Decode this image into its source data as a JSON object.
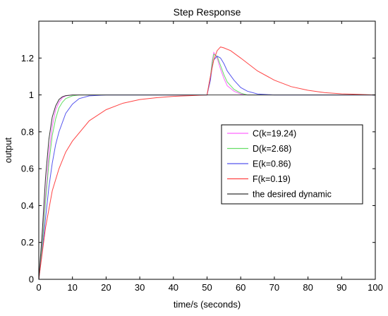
{
  "chart_data": {
    "type": "line",
    "title": "Step Response",
    "xlabel": "time/s (seconds)",
    "ylabel": "output",
    "xlim": [
      0,
      100
    ],
    "ylim": [
      0,
      1.4
    ],
    "xticks": [
      0,
      10,
      20,
      30,
      40,
      50,
      60,
      70,
      80,
      90,
      100
    ],
    "yticks": [
      0,
      0.2,
      0.4,
      0.6,
      0.8,
      1,
      1.2
    ],
    "ytick_labels": [
      "0",
      "0.2",
      "0.4",
      "0.6",
      "0.8",
      "1",
      "1.2"
    ],
    "grid": false,
    "legend_position": "center-right",
    "series": [
      {
        "name": "C(k=19.24)",
        "color": "#ff66ff",
        "x": [
          0,
          1,
          2,
          3,
          4,
          5,
          6,
          7,
          8,
          10,
          15,
          50,
          51,
          51.5,
          52,
          53,
          54,
          55,
          56,
          58,
          60,
          62,
          65,
          100
        ],
        "y": [
          0,
          0.2,
          0.45,
          0.68,
          0.83,
          0.92,
          0.96,
          0.985,
          0.995,
          1.0,
          1.0,
          1.0,
          1.1,
          1.18,
          1.23,
          1.2,
          1.14,
          1.09,
          1.05,
          1.02,
          1.005,
          1.0,
          1.0,
          1.0
        ]
      },
      {
        "name": "D(k=2.68)",
        "color": "#66dd66",
        "x": [
          0,
          1,
          2,
          3,
          4,
          5,
          6,
          7,
          8,
          10,
          12,
          15,
          50,
          51,
          51.5,
          52,
          53,
          54,
          55,
          56,
          58,
          60,
          62,
          65,
          100
        ],
        "y": [
          0,
          0.18,
          0.42,
          0.63,
          0.78,
          0.87,
          0.93,
          0.96,
          0.98,
          0.995,
          1.0,
          1.0,
          1.0,
          1.1,
          1.17,
          1.22,
          1.21,
          1.16,
          1.11,
          1.07,
          1.03,
          1.01,
          1.0,
          1.0,
          1.0
        ]
      },
      {
        "name": "E(k=0.86)",
        "color": "#5555ee",
        "x": [
          0,
          1,
          2,
          3,
          4,
          5,
          6,
          8,
          10,
          12,
          15,
          20,
          50,
          51,
          51.5,
          52,
          53,
          54,
          55,
          56,
          58,
          60,
          62,
          65,
          70,
          100
        ],
        "y": [
          0,
          0.15,
          0.33,
          0.5,
          0.63,
          0.73,
          0.8,
          0.9,
          0.95,
          0.98,
          0.995,
          1.0,
          1.0,
          1.08,
          1.15,
          1.19,
          1.21,
          1.2,
          1.17,
          1.13,
          1.08,
          1.04,
          1.02,
          1.005,
          1.0,
          1.0
        ]
      },
      {
        "name": "F(k=0.19)",
        "color": "#ff4444",
        "x": [
          0,
          2,
          4,
          6,
          8,
          10,
          15,
          20,
          25,
          30,
          35,
          40,
          45,
          50,
          51,
          52,
          53,
          54,
          55,
          57,
          60,
          65,
          70,
          75,
          80,
          85,
          90,
          95,
          100
        ],
        "y": [
          0,
          0.28,
          0.48,
          0.6,
          0.69,
          0.75,
          0.86,
          0.92,
          0.955,
          0.975,
          0.985,
          0.992,
          0.996,
          1.0,
          1.1,
          1.19,
          1.24,
          1.26,
          1.255,
          1.24,
          1.2,
          1.13,
          1.08,
          1.045,
          1.025,
          1.012,
          1.006,
          1.003,
          1.0
        ]
      },
      {
        "name": "the desired dynamic",
        "color": "#333333",
        "x": [
          0,
          1,
          2,
          3,
          4,
          5,
          6,
          7,
          8,
          10,
          15,
          100
        ],
        "y": [
          0,
          0.25,
          0.55,
          0.76,
          0.88,
          0.94,
          0.975,
          0.99,
          0.996,
          1.0,
          1.0,
          1.0
        ]
      }
    ]
  }
}
